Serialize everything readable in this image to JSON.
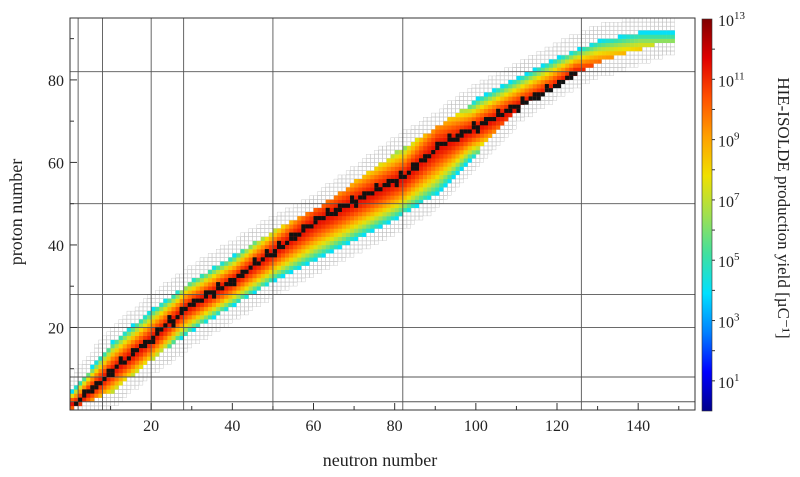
{
  "chart_data": {
    "type": "heatmap",
    "title": "",
    "xlabel": "neutron number",
    "ylabel": "proton number",
    "colorbar_label": "HIE-ISOLDE production yield [µC⁻¹]",
    "xlim": [
      0,
      154
    ],
    "ylim": [
      0,
      95
    ],
    "xticks": [
      20,
      40,
      60,
      80,
      100,
      120,
      140
    ],
    "yticks": [
      20,
      40,
      60,
      80
    ],
    "magic_numbers": [
      2,
      8,
      20,
      28,
      50,
      82,
      126
    ],
    "colorbar": {
      "log10_range": [
        0,
        13
      ],
      "tick_labels": [
        {
          "base": "10",
          "exp": "1"
        },
        {
          "base": "10",
          "exp": "3"
        },
        {
          "base": "10",
          "exp": "5"
        },
        {
          "base": "10",
          "exp": "7"
        },
        {
          "base": "10",
          "exp": "9"
        },
        {
          "base": "10",
          "exp": "11"
        },
        {
          "base": "10",
          "exp": "13"
        }
      ],
      "tick_log10_values": [
        1,
        3,
        5,
        7,
        9,
        11,
        13
      ],
      "colors": [
        "#00008b",
        "#0000ff",
        "#0080ff",
        "#00e0ff",
        "#40e0a0",
        "#a0e050",
        "#f0e000",
        "#ffa000",
        "#ff5000",
        "#e00000",
        "#800000"
      ]
    },
    "stable_valley_path": [
      [
        1,
        1
      ],
      [
        10,
        9
      ],
      [
        20,
        17
      ],
      [
        28,
        24
      ],
      [
        40,
        31
      ],
      [
        50,
        38
      ],
      [
        60,
        45
      ],
      [
        70,
        50
      ],
      [
        82,
        56
      ],
      [
        90,
        63
      ],
      [
        100,
        68
      ],
      [
        110,
        73
      ],
      [
        118,
        77
      ],
      [
        124,
        81
      ]
    ],
    "yield_region": {
      "lower_edge": [
        [
          0,
          0
        ],
        [
          10,
          4
        ],
        [
          20,
          12
        ],
        [
          30,
          19
        ],
        [
          40,
          25
        ],
        [
          50,
          31
        ],
        [
          60,
          36
        ],
        [
          70,
          41
        ],
        [
          80,
          46
        ],
        [
          90,
          52
        ],
        [
          100,
          62
        ],
        [
          110,
          73
        ],
        [
          120,
          79
        ],
        [
          130,
          84
        ],
        [
          140,
          87
        ],
        [
          146,
          89
        ]
      ],
      "upper_edge": [
        [
          0,
          4
        ],
        [
          10,
          16
        ],
        [
          20,
          24
        ],
        [
          30,
          31
        ],
        [
          40,
          37
        ],
        [
          50,
          43
        ],
        [
          60,
          48
        ],
        [
          70,
          55
        ],
        [
          80,
          62
        ],
        [
          90,
          68
        ],
        [
          100,
          75
        ],
        [
          110,
          80
        ],
        [
          120,
          85
        ],
        [
          130,
          89
        ],
        [
          140,
          91
        ],
        [
          146,
          91
        ]
      ],
      "peak_log10_yield": 11.5,
      "edge_log10_yield": 4.0
    },
    "grid": true,
    "legend": "colorbar-right"
  }
}
